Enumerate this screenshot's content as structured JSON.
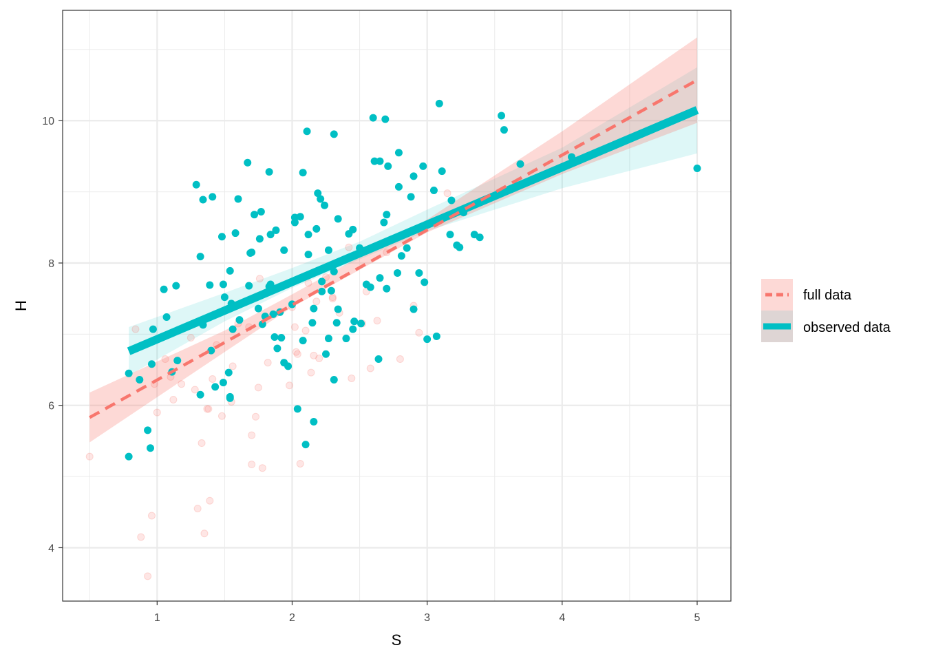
{
  "chart_data": {
    "type": "scatter",
    "xlabel": "S",
    "ylabel": "H",
    "xlim": [
      0.3,
      5.25
    ],
    "ylim": [
      3.25,
      11.55
    ],
    "x_ticks": [
      1,
      2,
      3,
      4,
      5
    ],
    "y_ticks": [
      4,
      6,
      8,
      10
    ],
    "grid": true,
    "legend_position": "right",
    "series": [
      {
        "name": "full data",
        "color": "#F8766D",
        "line_style": "dashed",
        "fit": {
          "x": [
            0.5,
            5.0
          ],
          "y": [
            5.83,
            10.57
          ]
        },
        "ci_lower": [
          [
            0.5,
            5.48
          ],
          [
            1.5,
            6.75
          ],
          [
            2.0,
            7.38
          ],
          [
            3.0,
            8.43
          ],
          [
            4.0,
            9.25
          ],
          [
            5.0,
            9.97
          ]
        ],
        "ci_upper": [
          [
            0.5,
            6.18
          ],
          [
            1.5,
            7.05
          ],
          [
            2.0,
            7.56
          ],
          [
            3.0,
            8.61
          ],
          [
            4.0,
            9.85
          ],
          [
            5.0,
            11.17
          ]
        ],
        "points": [
          [
            0.5,
            5.28
          ],
          [
            0.84,
            7.07
          ],
          [
            0.88,
            4.15
          ],
          [
            0.93,
            3.6
          ],
          [
            0.96,
            4.45
          ],
          [
            1.0,
            5.9
          ],
          [
            0.98,
            6.3
          ],
          [
            1.06,
            6.65
          ],
          [
            1.1,
            6.4
          ],
          [
            1.12,
            6.08
          ],
          [
            1.18,
            6.3
          ],
          [
            1.28,
            6.22
          ],
          [
            1.3,
            4.55
          ],
          [
            1.33,
            5.47
          ],
          [
            1.35,
            4.2
          ],
          [
            1.37,
            5.95
          ],
          [
            1.38,
            5.95
          ],
          [
            1.39,
            4.66
          ],
          [
            1.41,
            6.37
          ],
          [
            1.44,
            6.85
          ],
          [
            1.48,
            5.85
          ],
          [
            1.55,
            6.05
          ],
          [
            1.56,
            6.55
          ],
          [
            1.68,
            7.1
          ],
          [
            1.7,
            5.58
          ],
          [
            1.7,
            5.17
          ],
          [
            1.73,
            5.84
          ],
          [
            1.75,
            6.25
          ],
          [
            1.76,
            7.78
          ],
          [
            1.78,
            5.12
          ],
          [
            1.82,
            6.6
          ],
          [
            1.98,
            6.28
          ],
          [
            2.02,
            7.1
          ],
          [
            2.03,
            6.75
          ],
          [
            2.04,
            6.72
          ],
          [
            2.06,
            5.18
          ],
          [
            2.1,
            7.05
          ],
          [
            2.12,
            7.72
          ],
          [
            2.14,
            6.46
          ],
          [
            2.16,
            6.7
          ],
          [
            2.18,
            7.46
          ],
          [
            2.2,
            6.66
          ],
          [
            2.3,
            7.52
          ],
          [
            2.3,
            7.5
          ],
          [
            2.42,
            8.22
          ],
          [
            2.44,
            6.38
          ],
          [
            2.52,
            7.15
          ],
          [
            2.58,
            6.52
          ],
          [
            2.63,
            7.19
          ],
          [
            2.7,
            8.15
          ],
          [
            2.8,
            6.65
          ],
          [
            2.9,
            7.4
          ],
          [
            2.94,
            7.02
          ],
          [
            3.15,
            8.98
          ],
          [
            2.35,
            7.3
          ],
          [
            2.55,
            7.6
          ],
          [
            1.25,
            6.95
          ],
          [
            2.0,
            7.38
          ],
          [
            1.6,
            7.15
          ],
          [
            2.25,
            7.8
          ]
        ]
      },
      {
        "name": "observed data",
        "color": "#00BFC4",
        "line_style": "solid",
        "fit": {
          "x": [
            0.79,
            5.0
          ],
          "y": [
            6.76,
            10.15
          ]
        },
        "ci_lower": [
          [
            0.79,
            6.42
          ],
          [
            1.5,
            7.18
          ],
          [
            2.0,
            7.65
          ],
          [
            2.5,
            8.05
          ],
          [
            3.0,
            8.45
          ],
          [
            4.0,
            9.05
          ],
          [
            5.0,
            9.54
          ]
        ],
        "ci_upper": [
          [
            0.79,
            7.1
          ],
          [
            1.5,
            7.58
          ],
          [
            2.0,
            7.93
          ],
          [
            2.5,
            8.3
          ],
          [
            3.0,
            8.75
          ],
          [
            4.0,
            9.62
          ],
          [
            5.0,
            10.75
          ]
        ],
        "points": [
          [
            0.79,
            6.45
          ],
          [
            0.79,
            5.28
          ],
          [
            0.87,
            6.36
          ],
          [
            0.93,
            5.65
          ],
          [
            0.95,
            5.4
          ],
          [
            0.96,
            6.58
          ],
          [
            0.97,
            7.07
          ],
          [
            1.05,
            7.63
          ],
          [
            1.07,
            7.24
          ],
          [
            1.11,
            6.47
          ],
          [
            1.14,
            7.68
          ],
          [
            1.15,
            6.63
          ],
          [
            1.29,
            9.1
          ],
          [
            1.32,
            6.15
          ],
          [
            1.32,
            8.09
          ],
          [
            1.34,
            7.13
          ],
          [
            1.34,
            8.89
          ],
          [
            1.39,
            7.69
          ],
          [
            1.4,
            6.77
          ],
          [
            1.41,
            8.93
          ],
          [
            1.43,
            6.26
          ],
          [
            1.48,
            8.37
          ],
          [
            1.49,
            6.32
          ],
          [
            1.49,
            7.7
          ],
          [
            1.5,
            7.52
          ],
          [
            1.53,
            6.46
          ],
          [
            1.54,
            7.89
          ],
          [
            1.54,
            6.1
          ],
          [
            1.54,
            6.12
          ],
          [
            1.55,
            7.43
          ],
          [
            1.56,
            7.07
          ],
          [
            1.58,
            8.42
          ],
          [
            1.6,
            8.9
          ],
          [
            1.61,
            7.2
          ],
          [
            1.62,
            7.43
          ],
          [
            1.67,
            9.41
          ],
          [
            1.68,
            7.68
          ],
          [
            1.69,
            8.14
          ],
          [
            1.7,
            8.15
          ],
          [
            1.72,
            8.68
          ],
          [
            1.75,
            7.36
          ],
          [
            1.76,
            8.34
          ],
          [
            1.77,
            8.72
          ],
          [
            1.78,
            7.14
          ],
          [
            1.8,
            7.25
          ],
          [
            1.83,
            7.67
          ],
          [
            1.83,
            9.28
          ],
          [
            1.84,
            7.7
          ],
          [
            1.84,
            8.4
          ],
          [
            1.86,
            7.28
          ],
          [
            1.87,
            6.96
          ],
          [
            1.88,
            8.46
          ],
          [
            1.89,
            6.8
          ],
          [
            1.91,
            7.31
          ],
          [
            1.92,
            6.95
          ],
          [
            1.94,
            6.6
          ],
          [
            1.94,
            8.18
          ],
          [
            1.97,
            6.55
          ],
          [
            2.0,
            7.42
          ],
          [
            2.02,
            8.57
          ],
          [
            2.02,
            8.64
          ],
          [
            2.04,
            5.95
          ],
          [
            2.06,
            8.65
          ],
          [
            2.08,
            9.27
          ],
          [
            2.08,
            6.91
          ],
          [
            2.1,
            5.45
          ],
          [
            2.11,
            9.85
          ],
          [
            2.12,
            8.12
          ],
          [
            2.12,
            8.4
          ],
          [
            2.15,
            7.16
          ],
          [
            2.16,
            5.77
          ],
          [
            2.16,
            7.36
          ],
          [
            2.18,
            8.48
          ],
          [
            2.19,
            8.98
          ],
          [
            2.21,
            8.9
          ],
          [
            2.22,
            7.74
          ],
          [
            2.22,
            7.6
          ],
          [
            2.24,
            8.81
          ],
          [
            2.25,
            6.72
          ],
          [
            2.27,
            6.94
          ],
          [
            2.27,
            8.18
          ],
          [
            2.29,
            7.61
          ],
          [
            2.31,
            9.81
          ],
          [
            2.31,
            7.88
          ],
          [
            2.31,
            6.36
          ],
          [
            2.33,
            7.16
          ],
          [
            2.34,
            8.62
          ],
          [
            2.34,
            7.35
          ],
          [
            2.4,
            6.94
          ],
          [
            2.42,
            8.41
          ],
          [
            2.45,
            7.07
          ],
          [
            2.45,
            8.47
          ],
          [
            2.46,
            7.18
          ],
          [
            2.5,
            8.21
          ],
          [
            2.51,
            7.15
          ],
          [
            2.55,
            7.7
          ],
          [
            2.58,
            7.66
          ],
          [
            2.6,
            10.04
          ],
          [
            2.61,
            9.43
          ],
          [
            2.64,
            6.65
          ],
          [
            2.65,
            9.43
          ],
          [
            2.65,
            7.79
          ],
          [
            2.68,
            8.57
          ],
          [
            2.69,
            10.02
          ],
          [
            2.7,
            8.68
          ],
          [
            2.7,
            7.64
          ],
          [
            2.71,
            9.36
          ],
          [
            2.78,
            7.86
          ],
          [
            2.79,
            9.55
          ],
          [
            2.79,
            9.07
          ],
          [
            2.81,
            8.1
          ],
          [
            2.85,
            8.21
          ],
          [
            2.88,
            8.93
          ],
          [
            2.9,
            9.22
          ],
          [
            2.9,
            7.35
          ],
          [
            2.94,
            7.86
          ],
          [
            2.97,
            9.36
          ],
          [
            2.98,
            7.73
          ],
          [
            3.0,
            6.93
          ],
          [
            3.05,
            9.02
          ],
          [
            3.07,
            6.97
          ],
          [
            3.09,
            10.24
          ],
          [
            3.11,
            9.29
          ],
          [
            3.17,
            8.4
          ],
          [
            3.18,
            8.88
          ],
          [
            3.22,
            8.25
          ],
          [
            3.24,
            8.22
          ],
          [
            3.27,
            8.71
          ],
          [
            3.35,
            8.4
          ],
          [
            3.39,
            8.36
          ],
          [
            3.55,
            10.07
          ],
          [
            3.57,
            9.87
          ],
          [
            3.69,
            9.39
          ],
          [
            4.07,
            9.49
          ],
          [
            5.0,
            9.33
          ]
        ]
      }
    ]
  }
}
